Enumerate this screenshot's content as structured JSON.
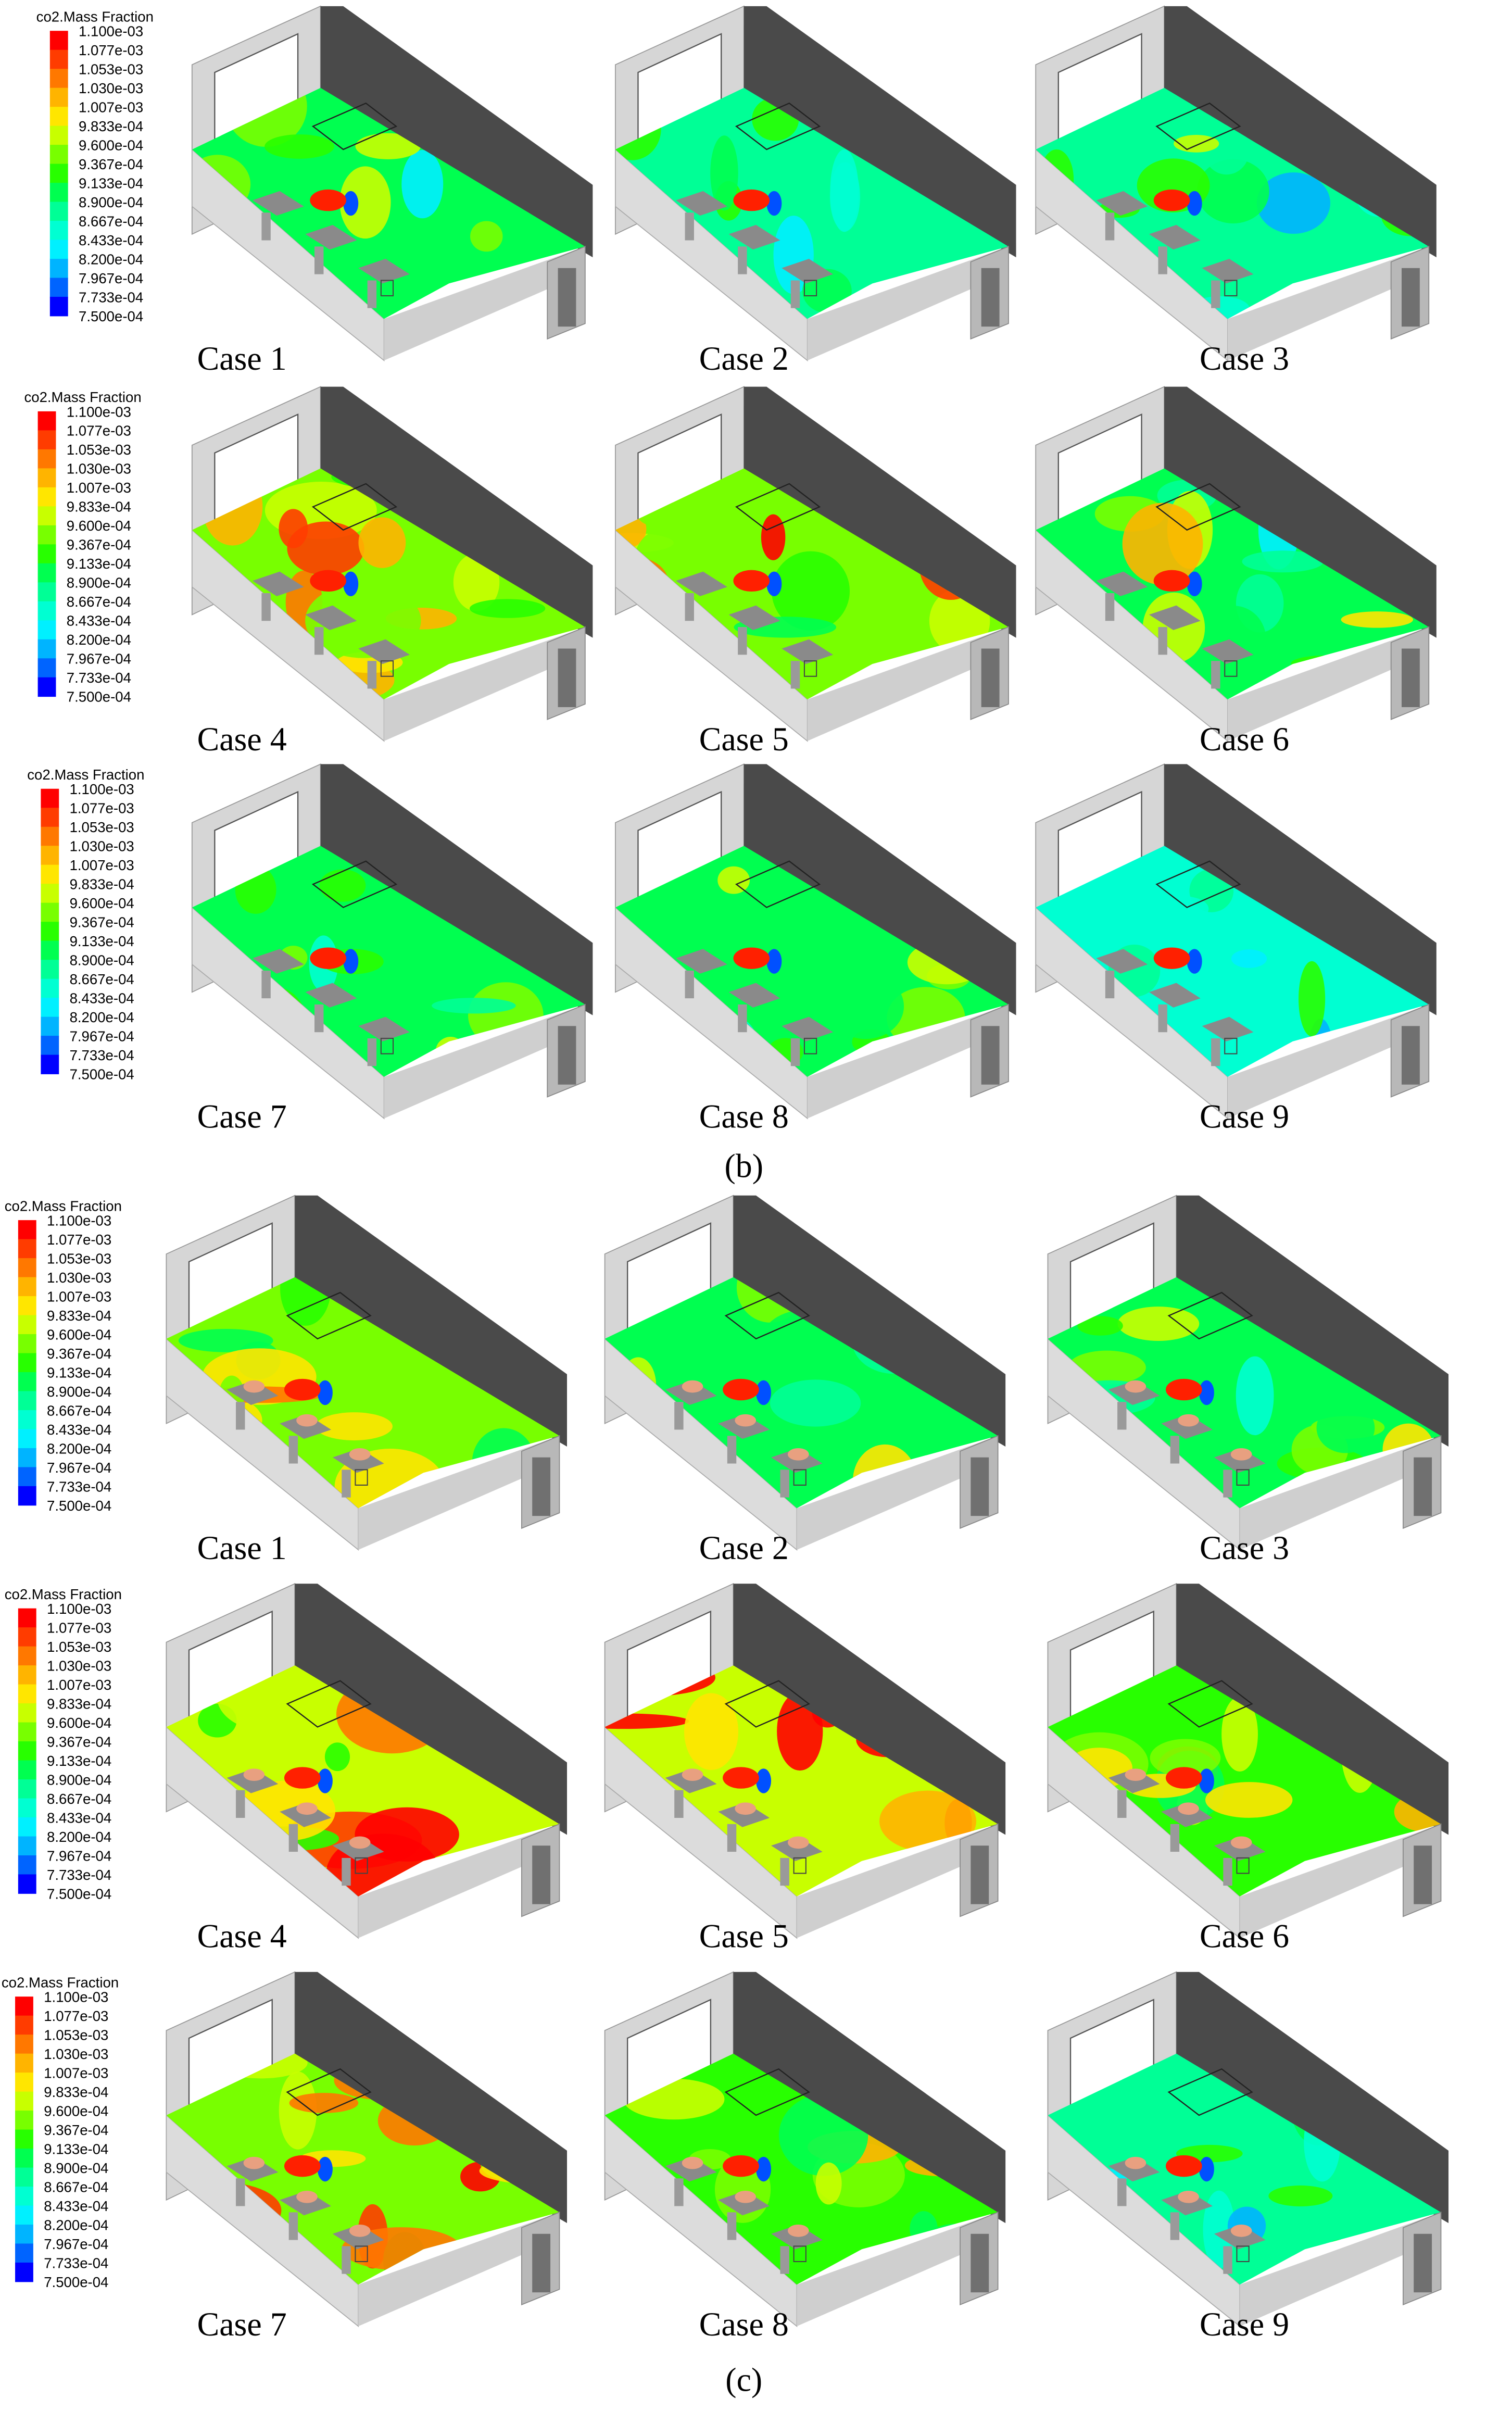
{
  "panels": [
    {
      "caption": "(b)",
      "rows": [
        {
          "colorbar": {
            "title": "co2.Mass Fraction",
            "labels": [
              "1.100e-03",
              "1.077e-03",
              "1.053e-03",
              "1.030e-03",
              "1.007e-03",
              "9.833e-04",
              "9.600e-04",
              "9.367e-04",
              "9.133e-04",
              "8.900e-04",
              "8.667e-04",
              "8.433e-04",
              "8.200e-04",
              "7.967e-04",
              "7.733e-04",
              "7.500e-04"
            ]
          },
          "cases": [
            "Case 1",
            "Case 2",
            "Case 3"
          ]
        },
        {
          "colorbar": {
            "title": "co2.Mass Fraction",
            "labels": [
              "1.100e-03",
              "1.077e-03",
              "1.053e-03",
              "1.030e-03",
              "1.007e-03",
              "9.833e-04",
              "9.600e-04",
              "9.367e-04",
              "9.133e-04",
              "8.900e-04",
              "8.667e-04",
              "8.433e-04",
              "8.200e-04",
              "7.967e-04",
              "7.733e-04",
              "7.500e-04"
            ]
          },
          "cases": [
            "Case 4",
            "Case 5",
            "Case 6"
          ]
        },
        {
          "colorbar": {
            "title": "co2.Mass Fraction",
            "labels": [
              "1.100e-03",
              "1.077e-03",
              "1.053e-03",
              "1.030e-03",
              "1.007e-03",
              "9.833e-04",
              "9.600e-04",
              "9.367e-04",
              "9.133e-04",
              "8.900e-04",
              "8.667e-04",
              "8.433e-04",
              "8.200e-04",
              "7.967e-04",
              "7.733e-04",
              "7.500e-04"
            ]
          },
          "cases": [
            "Case 7",
            "Case 8",
            "Case 9"
          ]
        }
      ]
    },
    {
      "caption": "(c)",
      "rows": [
        {
          "colorbar": {
            "title": "co2.Mass Fraction",
            "labels": [
              "1.100e-03",
              "1.077e-03",
              "1.053e-03",
              "1.030e-03",
              "1.007e-03",
              "9.833e-04",
              "9.600e-04",
              "9.367e-04",
              "9.133e-04",
              "8.900e-04",
              "8.667e-04",
              "8.433e-04",
              "8.200e-04",
              "7.967e-04",
              "7.733e-04",
              "7.500e-04"
            ]
          },
          "cases": [
            "Case 1",
            "Case 2",
            "Case 3"
          ]
        },
        {
          "colorbar": {
            "title": "co2.Mass Fraction",
            "labels": [
              "1.100e-03",
              "1.077e-03",
              "1.053e-03",
              "1.030e-03",
              "1.007e-03",
              "9.833e-04",
              "9.600e-04",
              "9.367e-04",
              "9.133e-04",
              "8.900e-04",
              "8.667e-04",
              "8.433e-04",
              "8.200e-04",
              "7.967e-04",
              "7.733e-04",
              "7.500e-04"
            ]
          },
          "cases": [
            "Case 4",
            "Case 5",
            "Case 6"
          ]
        },
        {
          "colorbar": {
            "title": "co2.Mass Fraction",
            "labels": [
              "1.100e-03",
              "1.077e-03",
              "1.053e-03",
              "1.030e-03",
              "1.007e-03",
              "9.833e-04",
              "9.600e-04",
              "9.367e-04",
              "9.133e-04",
              "8.900e-04",
              "8.667e-04",
              "8.433e-04",
              "8.200e-04",
              "7.967e-04",
              "7.733e-04",
              "7.500e-04"
            ]
          },
          "cases": [
            "Case 7",
            "Case 8",
            "Case 9"
          ]
        }
      ]
    }
  ]
}
